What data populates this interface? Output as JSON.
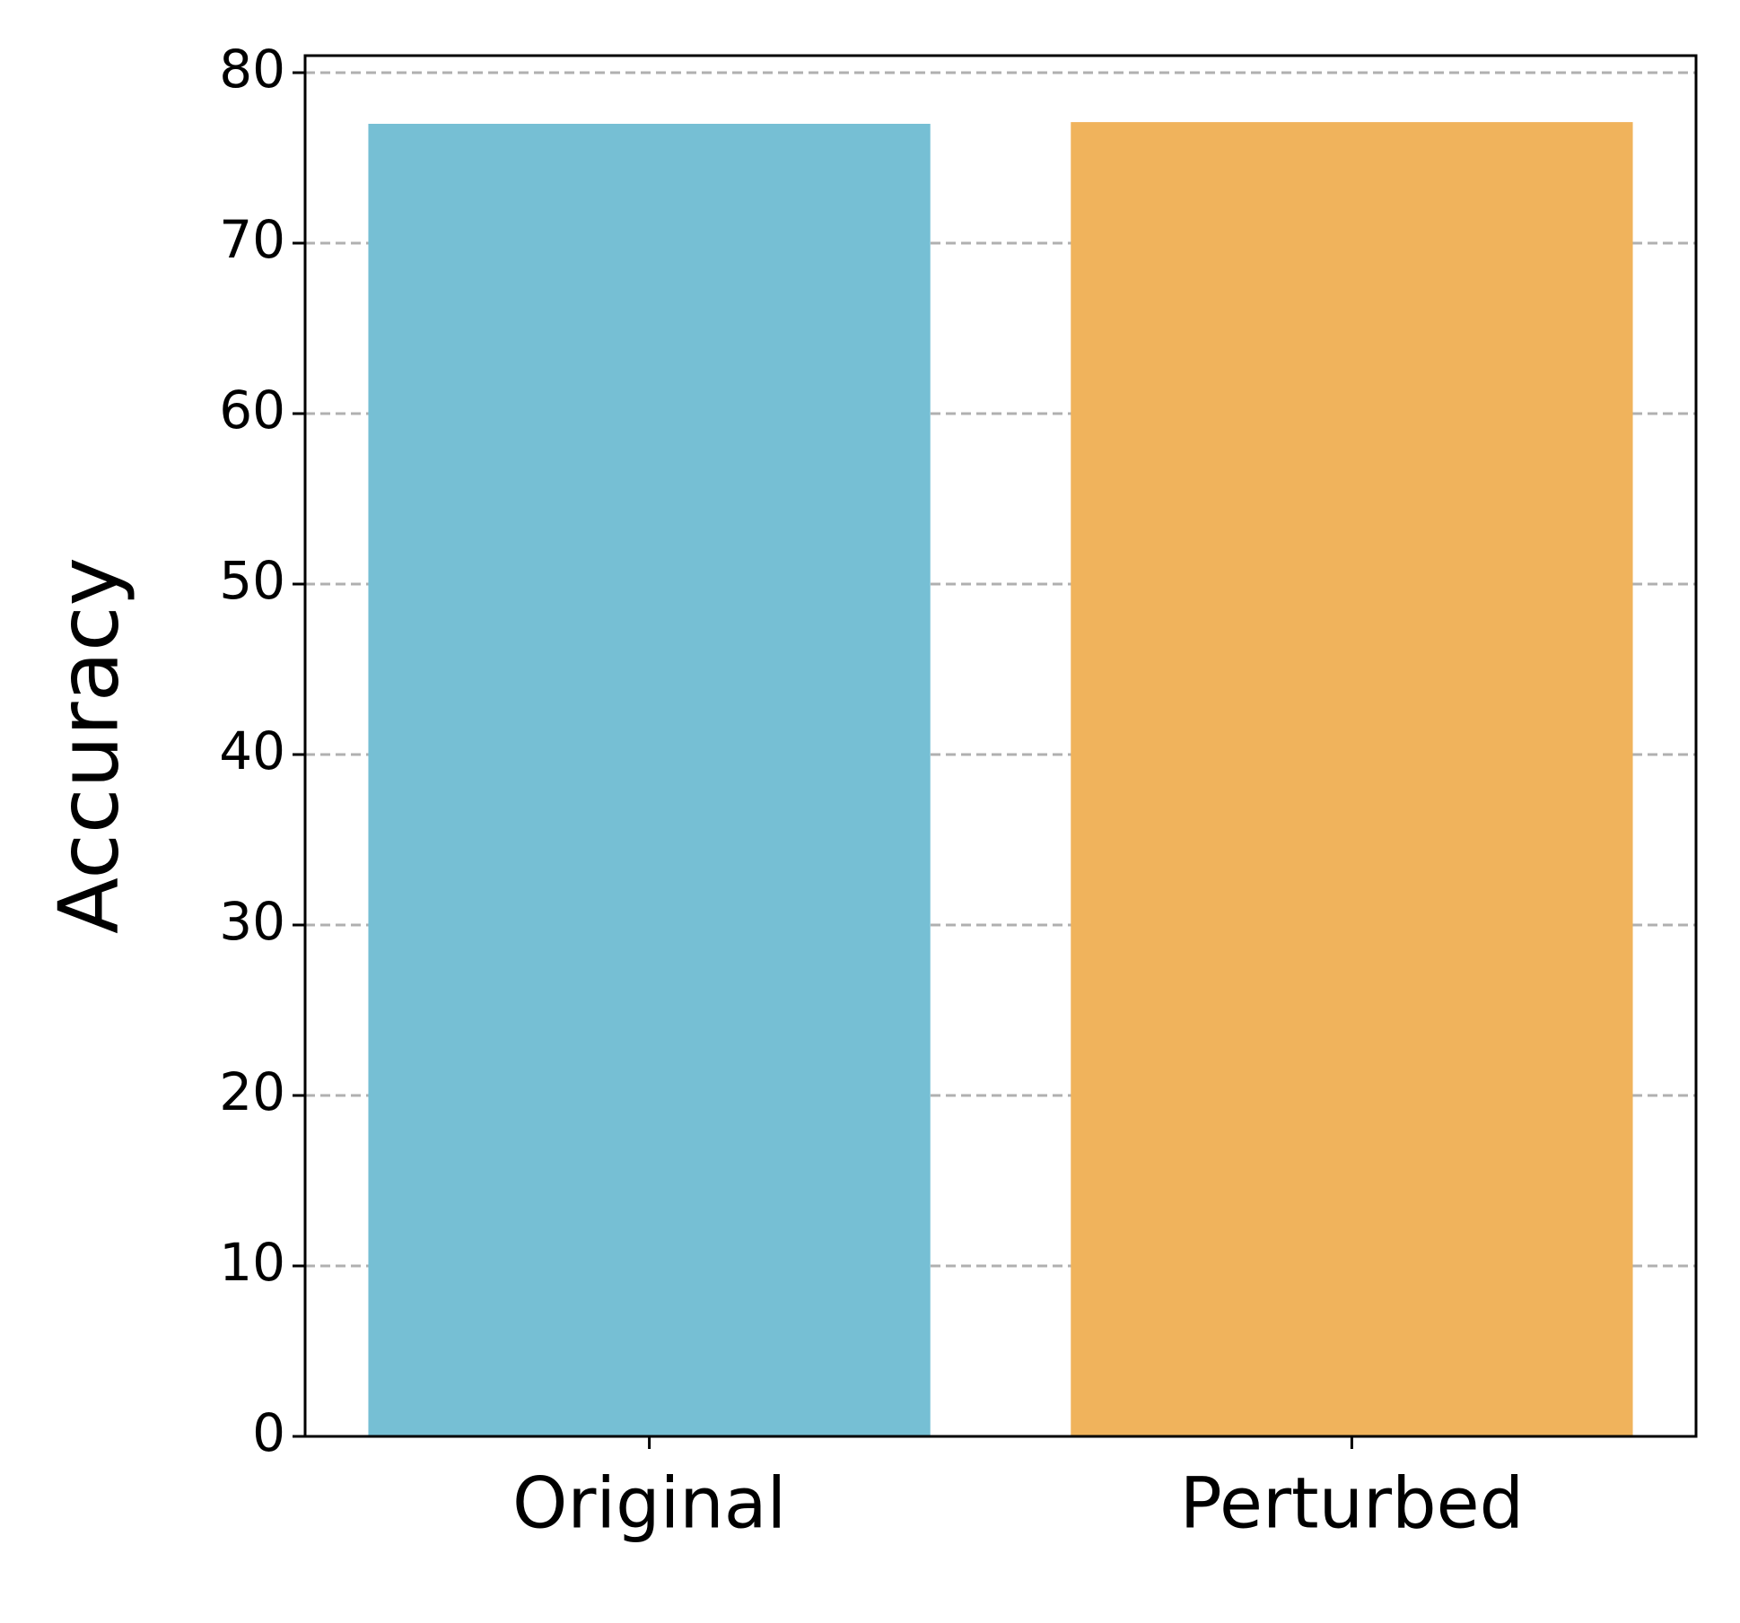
{
  "chart_data": {
    "type": "bar",
    "y_label": "Accuracy",
    "categories": [
      "Original",
      "Perturbed"
    ],
    "values": [
      77.0,
      77.1
    ],
    "colors": [
      "#76bfd4",
      "#f0b35c"
    ],
    "ylim": [
      0,
      81
    ],
    "yticks": [
      0,
      10,
      20,
      30,
      40,
      50,
      60,
      70,
      80
    ],
    "grid": true
  }
}
